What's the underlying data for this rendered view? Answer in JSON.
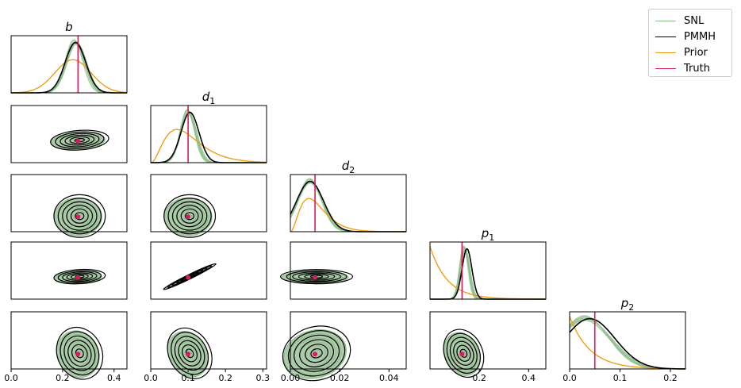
{
  "colors": {
    "SNL": "#8dbf8b",
    "SNL_fill": "#6a9f66",
    "PMMH": "#000000",
    "Prior": "#f39c12",
    "Truth": "#d81b60"
  },
  "legend": [
    {
      "label": "SNL",
      "color": "#8dbf8b"
    },
    {
      "label": "PMMH",
      "color": "#000000"
    },
    {
      "label": "Prior",
      "color": "#f39c12"
    },
    {
      "label": "Truth",
      "color": "#d81b60"
    }
  ],
  "chart_data": {
    "type": "corner",
    "parameters": [
      {
        "id": "b",
        "label_base": "b",
        "label_sub": "",
        "xlim": [
          0.0,
          0.45
        ],
        "ticks": [
          "0.0",
          "0.2",
          "0.4"
        ],
        "tick_values": [
          0.0,
          0.2,
          0.4
        ],
        "truth": 0.26
      },
      {
        "id": "d1",
        "label_base": "d",
        "label_sub": "1",
        "xlim": [
          0.0,
          0.31
        ],
        "ticks": [
          "0.0",
          "0.1",
          "0.2",
          "0.3"
        ],
        "tick_values": [
          0.0,
          0.1,
          0.2,
          0.3
        ],
        "truth": 0.1
      },
      {
        "id": "d2",
        "label_base": "d",
        "label_sub": "2",
        "xlim": [
          0.0,
          0.047
        ],
        "ticks": [
          "0.00",
          "0.02",
          "0.04"
        ],
        "tick_values": [
          0.0,
          0.02,
          0.04
        ],
        "truth": 0.01
      },
      {
        "id": "p1",
        "label_base": "p",
        "label_sub": "1",
        "xlim": [
          0.0,
          0.47
        ],
        "ticks": [
          "0.2",
          "0.4"
        ],
        "tick_values": [
          0.2,
          0.4
        ],
        "truth": 0.13
      },
      {
        "id": "p2",
        "label_base": "p",
        "label_sub": "2",
        "xlim": [
          0.0,
          0.23
        ],
        "ticks": [
          "0.0",
          "0.1",
          "0.2"
        ],
        "tick_values": [
          0.0,
          0.1,
          0.2
        ],
        "truth": 0.05
      }
    ],
    "marginals": [
      {
        "param": "b",
        "snl": {
          "mode": 0.25,
          "sd": 0.036
        },
        "pmmh": {
          "mode": 0.25,
          "sd": 0.04
        },
        "prior": {
          "kind": "gauss",
          "mode": 0.24,
          "sd": 0.07
        }
      },
      {
        "param": "d1",
        "snl": {
          "mode": 0.1,
          "sd": 0.02
        },
        "pmmh": {
          "mode": 0.105,
          "sd": 0.024
        },
        "prior": {
          "kind": "gamma",
          "mode": 0.07,
          "sd": 0.05
        }
      },
      {
        "param": "d2",
        "snl": {
          "mode": 0.008,
          "sd": 0.005
        },
        "pmmh": {
          "mode": 0.008,
          "sd": 0.0055
        },
        "prior": {
          "kind": "gamma",
          "mode": 0.0075,
          "sd": 0.005
        }
      },
      {
        "param": "p1",
        "snl": {
          "mode": 0.14,
          "sd": 0.018
        },
        "pmmh": {
          "mode": 0.15,
          "sd": 0.02
        },
        "prior": {
          "kind": "exp",
          "scale": 0.07
        }
      },
      {
        "param": "p2",
        "snl": {
          "mode": 0.03,
          "sd": 0.05
        },
        "pmmh": {
          "mode": 0.04,
          "sd": 0.05
        },
        "prior": {
          "kind": "exp",
          "scale": 0.04
        }
      }
    ],
    "joint_truth_points": [
      {
        "row": "d1",
        "col": "b",
        "x": 0.26,
        "y": 0.1
      },
      {
        "row": "d2",
        "col": "b",
        "x": 0.26,
        "y": 0.01
      },
      {
        "row": "d2",
        "col": "d1",
        "x": 0.1,
        "y": 0.01
      },
      {
        "row": "p1",
        "col": "b",
        "x": 0.26,
        "y": 0.13
      },
      {
        "row": "p1",
        "col": "d1",
        "x": 0.1,
        "y": 0.13
      },
      {
        "row": "p1",
        "col": "d2",
        "x": 0.01,
        "y": 0.13
      },
      {
        "row": "p2",
        "col": "b",
        "x": 0.26,
        "y": 0.05
      },
      {
        "row": "p2",
        "col": "d1",
        "x": 0.1,
        "y": 0.05
      },
      {
        "row": "p2",
        "col": "d2",
        "x": 0.01,
        "y": 0.05
      },
      {
        "row": "p2",
        "col": "p1",
        "x": 0.13,
        "y": 0.05
      }
    ],
    "series": [
      {
        "name": "SNL"
      },
      {
        "name": "PMMH"
      },
      {
        "name": "Prior"
      },
      {
        "name": "Truth"
      }
    ],
    "legend_position": "top-right"
  }
}
